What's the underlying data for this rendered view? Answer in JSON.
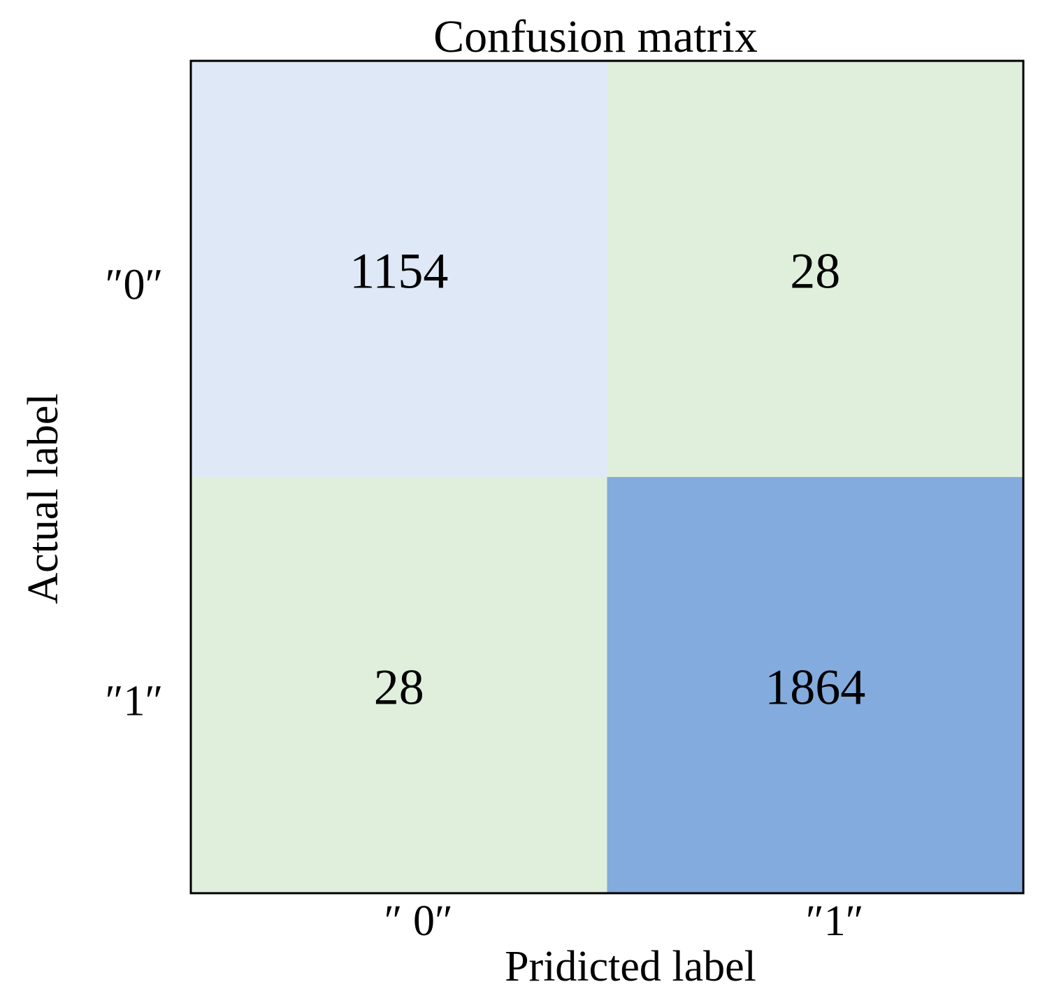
{
  "chart_data": {
    "type": "heatmap",
    "title": "Confusion matrix",
    "xlabel": "Pridicted label",
    "ylabel": "Actual label",
    "x_categories": [
      "″ 0″",
      "″1″"
    ],
    "y_categories": [
      "″0″",
      "″1″"
    ],
    "values": [
      [
        1154,
        28
      ],
      [
        28,
        1864
      ]
    ],
    "cell_colors": [
      [
        "#dfe8f6",
        "#dfefdc"
      ],
      [
        "#dfefdc",
        "#84abdd"
      ]
    ],
    "grid": false,
    "colorbar": false
  }
}
